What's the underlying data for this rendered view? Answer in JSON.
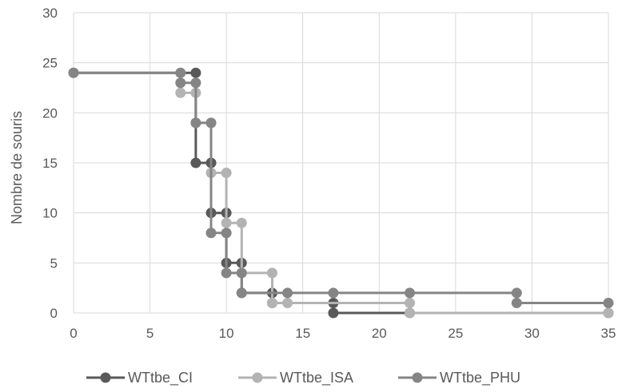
{
  "chart_data": {
    "type": "line",
    "step": true,
    "title": "",
    "xlabel": "",
    "ylabel": "Nombre de souris",
    "xlim": [
      0,
      35
    ],
    "ylim": [
      0,
      30
    ],
    "x_ticks": [
      0,
      5,
      10,
      15,
      20,
      25,
      30,
      35
    ],
    "y_ticks": [
      0,
      5,
      10,
      15,
      20,
      25,
      30
    ],
    "grid": true,
    "legend_position": "bottom",
    "series": [
      {
        "name": "WTtbe_CI",
        "color": "#595959",
        "points": [
          [
            0,
            24
          ],
          [
            8,
            24
          ],
          [
            8,
            15
          ],
          [
            9,
            15
          ],
          [
            9,
            10
          ],
          [
            10,
            10
          ],
          [
            10,
            5
          ],
          [
            11,
            5
          ],
          [
            11,
            2
          ],
          [
            13,
            2
          ],
          [
            13,
            1
          ],
          [
            17,
            1
          ],
          [
            17,
            0
          ],
          [
            22,
            0
          ],
          [
            35,
            0
          ]
        ]
      },
      {
        "name": "WTtbe_ISA",
        "color": "#b3b3b3",
        "points": [
          [
            0,
            24
          ],
          [
            7,
            24
          ],
          [
            7,
            22
          ],
          [
            8,
            22
          ],
          [
            8,
            19
          ],
          [
            9,
            19
          ],
          [
            9,
            14
          ],
          [
            10,
            14
          ],
          [
            10,
            9
          ],
          [
            11,
            9
          ],
          [
            11,
            4
          ],
          [
            13,
            4
          ],
          [
            13,
            1
          ],
          [
            14,
            1
          ],
          [
            22,
            1
          ],
          [
            22,
            0
          ],
          [
            35,
            0
          ]
        ]
      },
      {
        "name": "WTtbe_PHU",
        "color": "#858585",
        "points": [
          [
            0,
            24
          ],
          [
            7,
            24
          ],
          [
            7,
            23
          ],
          [
            8,
            23
          ],
          [
            8,
            19
          ],
          [
            9,
            19
          ],
          [
            9,
            8
          ],
          [
            10,
            8
          ],
          [
            10,
            4
          ],
          [
            11,
            4
          ],
          [
            11,
            2
          ],
          [
            14,
            2
          ],
          [
            17,
            2
          ],
          [
            22,
            2
          ],
          [
            29,
            2
          ],
          [
            29,
            1
          ],
          [
            35,
            1
          ]
        ]
      }
    ]
  }
}
